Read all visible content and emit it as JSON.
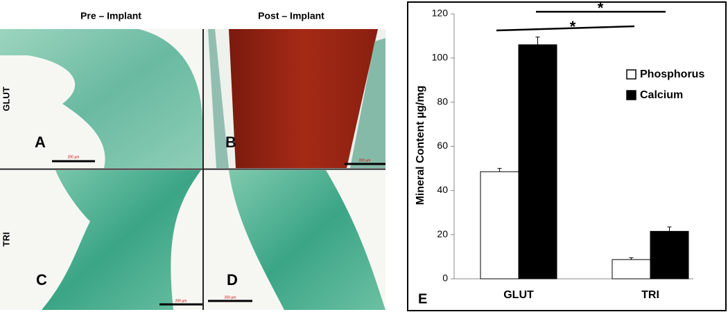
{
  "figure": {
    "column_titles": [
      "Pre – Implant",
      "Post – Implant"
    ],
    "row_labels": [
      "GLUT",
      "TRI"
    ],
    "panels": [
      {
        "label": "A",
        "scale_bar": "200 µm"
      },
      {
        "label": "B",
        "scale_bar": "200 µm"
      },
      {
        "label": "C",
        "scale_bar": "200 µm"
      },
      {
        "label": "D",
        "scale_bar": "200 µm"
      }
    ]
  },
  "chart_data": {
    "type": "bar",
    "panel_label": "E",
    "y_label": "Mineral Content µg/mg",
    "categories": [
      "GLUT",
      "TRI"
    ],
    "series": [
      {
        "name": "Phosphorus",
        "color": "#ffffff",
        "values": [
          48.5,
          8.7
        ],
        "errors": [
          1.5,
          0.8
        ]
      },
      {
        "name": "Calcium",
        "color": "#000000",
        "values": [
          106,
          21.5
        ],
        "errors": [
          3.5,
          2
        ]
      }
    ],
    "ylim": [
      0,
      120
    ],
    "yticks": [
      0,
      20,
      40,
      60,
      80,
      100,
      120
    ],
    "annotations": [
      "*",
      "*"
    ],
    "legend": "upper right"
  }
}
